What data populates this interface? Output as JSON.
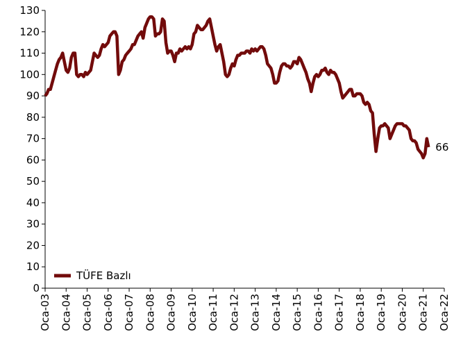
{
  "chart_data": {
    "type": "line",
    "categories": [
      "Oca-03",
      null,
      null,
      null,
      null,
      null,
      null,
      null,
      null,
      null,
      null,
      null,
      "Oca-04",
      null,
      null,
      null,
      null,
      null,
      null,
      null,
      null,
      null,
      null,
      null,
      "Oca-05",
      null,
      null,
      null,
      null,
      null,
      null,
      null,
      null,
      null,
      null,
      null,
      "Oca-06",
      null,
      null,
      null,
      null,
      null,
      null,
      null,
      null,
      null,
      null,
      null,
      "Oca-07",
      null,
      null,
      null,
      null,
      null,
      null,
      null,
      null,
      null,
      null,
      null,
      "Oca-08",
      null,
      null,
      null,
      null,
      null,
      null,
      null,
      null,
      null,
      null,
      null,
      "Oca-09",
      null,
      null,
      null,
      null,
      null,
      null,
      null,
      null,
      null,
      null,
      null,
      "Oca-10",
      null,
      null,
      null,
      null,
      null,
      null,
      null,
      null,
      null,
      null,
      null,
      "Oca-11",
      null,
      null,
      null,
      null,
      null,
      null,
      null,
      null,
      null,
      null,
      null,
      "Oca-12",
      null,
      null,
      null,
      null,
      null,
      null,
      null,
      null,
      null,
      null,
      null,
      "Oca-13",
      null,
      null,
      null,
      null,
      null,
      null,
      null,
      null,
      null,
      null,
      null,
      "Oca-14",
      null,
      null,
      null,
      null,
      null,
      null,
      null,
      null,
      null,
      null,
      null,
      "Oca-15",
      null,
      null,
      null,
      null,
      null,
      null,
      null,
      null,
      null,
      null,
      null,
      "Oca-16",
      null,
      null,
      null,
      null,
      null,
      null,
      null,
      null,
      null,
      null,
      null,
      "Oca-17",
      null,
      null,
      null,
      null,
      null,
      null,
      null,
      null,
      null,
      null,
      null,
      "Oca-18",
      null,
      null,
      null,
      null,
      null,
      null,
      null,
      null,
      null,
      null,
      null,
      "Oca-19",
      null,
      null,
      null,
      null,
      null,
      null,
      null,
      null,
      null,
      null,
      null,
      "Oca-20",
      null,
      null,
      null,
      null,
      null,
      null,
      null,
      null,
      null,
      null,
      null,
      "Oca-21",
      null,
      null,
      null,
      null,
      null,
      null,
      null,
      null,
      null,
      null,
      null,
      "Oca-22"
    ],
    "series": [
      {
        "name": "TÜFE Bazlı",
        "color": "#720b0b",
        "last_label": "66",
        "values": [
          90,
          91,
          93,
          93,
          96,
          99,
          102,
          105,
          107,
          108,
          110,
          106,
          102,
          101,
          103,
          108,
          110,
          110,
          100,
          99,
          100,
          100,
          99,
          101,
          100,
          101,
          102,
          106,
          110,
          109,
          108,
          109,
          112,
          114,
          113,
          114,
          115,
          118,
          119,
          120,
          120,
          118,
          100,
          102,
          106,
          107,
          109,
          110,
          111,
          112,
          114,
          114,
          116,
          118,
          119,
          120,
          117,
          122,
          124,
          126,
          127,
          127,
          126,
          118,
          119,
          119,
          120,
          126,
          125,
          115,
          110,
          111,
          111,
          109,
          106,
          110,
          110,
          112,
          111,
          112,
          113,
          112,
          113,
          112,
          114,
          119,
          120,
          123,
          122,
          121,
          121,
          122,
          123,
          125,
          126,
          122,
          118,
          114,
          111,
          113,
          114,
          110,
          106,
          100,
          99,
          100,
          103,
          105,
          104,
          107,
          109,
          109,
          110,
          110,
          110,
          111,
          111,
          110,
          112,
          111,
          112,
          111,
          112,
          113,
          113,
          112,
          109,
          105,
          104,
          103,
          100,
          96,
          96,
          97,
          101,
          104,
          105,
          105,
          104,
          104,
          103,
          104,
          106,
          106,
          105,
          108,
          107,
          105,
          103,
          101,
          98,
          96,
          92,
          96,
          99,
          100,
          99,
          100,
          102,
          102,
          103,
          101,
          100,
          102,
          101,
          101,
          100,
          98,
          96,
          92,
          89,
          90,
          91,
          92,
          93,
          93,
          90,
          90,
          91,
          91,
          91,
          90,
          87,
          86,
          87,
          86,
          83,
          82,
          72,
          64,
          70,
          75,
          76,
          76,
          77,
          76,
          75,
          70,
          72,
          74,
          76,
          77,
          77,
          77,
          77,
          76,
          76,
          75,
          74,
          70,
          69,
          69,
          68,
          65,
          64,
          63,
          61,
          63,
          70,
          66,
          null,
          null,
          null,
          null,
          null,
          null,
          null,
          null,
          null
        ]
      }
    ],
    "ylim": [
      0,
      130
    ],
    "yticks": [
      0,
      10,
      20,
      30,
      40,
      50,
      60,
      70,
      80,
      90,
      100,
      110,
      120,
      130
    ],
    "legend": "lower left"
  }
}
